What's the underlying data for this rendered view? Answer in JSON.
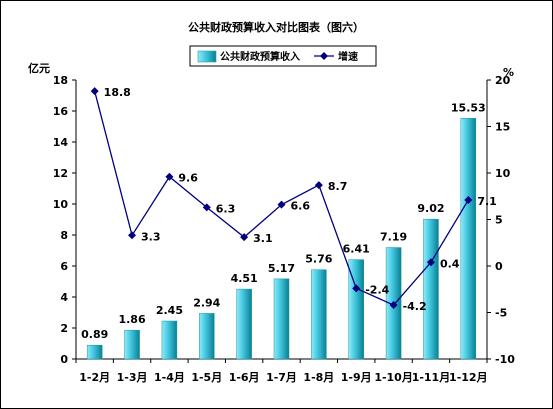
{
  "chart_data": {
    "type": "bar+line",
    "title": "公共财政预算收入对比图表（图六）",
    "categories": [
      "1-2月",
      "1-3月",
      "1-4月",
      "1-5月",
      "1-6月",
      "1-7月",
      "1-8月",
      "1-9月",
      "1-10月",
      "1-11月",
      "1-12月"
    ],
    "series": [
      {
        "name": "公共财政预算收入",
        "type": "bar",
        "axis": "left",
        "values": [
          0.89,
          1.86,
          2.45,
          2.94,
          4.51,
          5.17,
          5.76,
          6.41,
          7.19,
          9.02,
          15.53
        ],
        "labels": [
          "0.89",
          "1.86",
          "2.45",
          "2.94",
          "4.51",
          "5.17",
          "5.76",
          "6.41",
          "7.19",
          "9.02",
          "15.53"
        ]
      },
      {
        "name": "增速",
        "type": "line",
        "axis": "right",
        "values": [
          18.8,
          3.3,
          9.6,
          6.3,
          3.1,
          6.6,
          8.7,
          -2.4,
          -4.2,
          0.4,
          7.1
        ],
        "labels": [
          "18.8",
          "3.3",
          "9.6",
          "6.3",
          "3.1",
          "6.6",
          "8.7",
          "-2.4",
          "-4.2",
          "0.4",
          "7.1"
        ]
      }
    ],
    "left_axis": {
      "unit": "亿元",
      "min": 0,
      "max": 18,
      "step": 2
    },
    "right_axis": {
      "unit": "%",
      "min": -10,
      "max": 20,
      "step": 5
    },
    "legend": "top-center",
    "grid": false,
    "colors": {
      "bar_light": "#7FE3F5",
      "bar_dark": "#0B8A9E",
      "line": "#000080"
    }
  }
}
